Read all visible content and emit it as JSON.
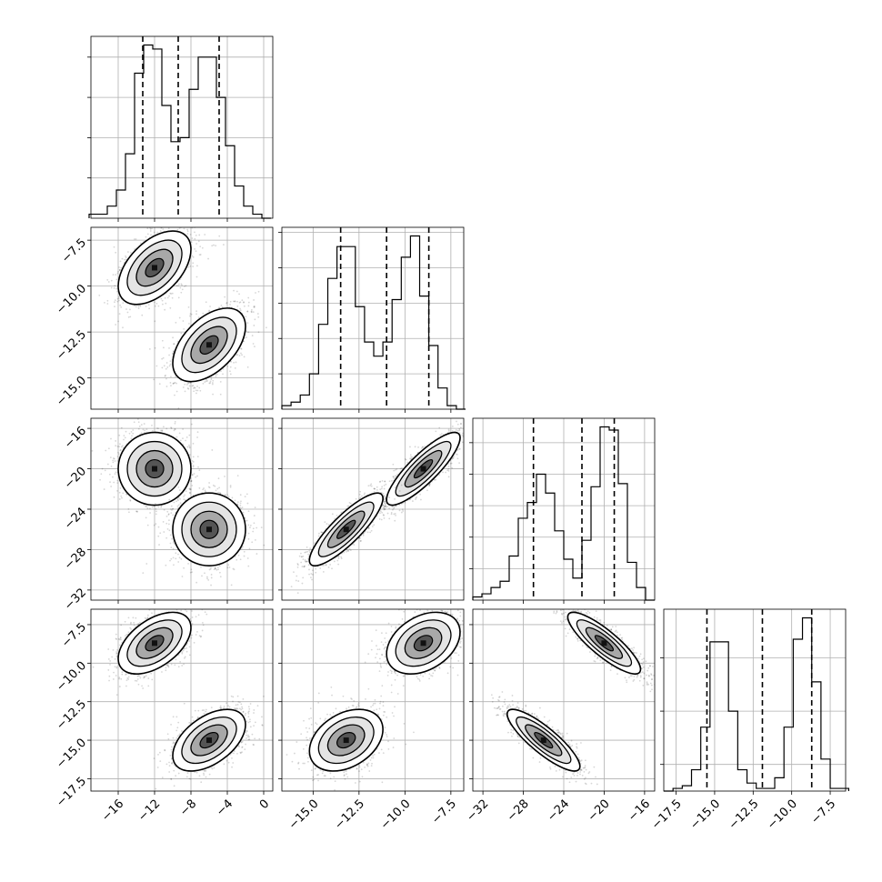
{
  "chart_data": {
    "type": "corner",
    "grid": true,
    "variables": [
      {
        "name": "",
        "range": [
          -19,
          1
        ],
        "ticks": [
          -16,
          -12,
          -8,
          -4,
          0
        ],
        "tick_labels": [
          "−16",
          "−12",
          "−8",
          "−4",
          "0"
        ],
        "quantiles": [
          -13.3,
          -9.4,
          -4.9
        ],
        "hist_x": [
          -18.7,
          -17.7,
          -16.7,
          -15.7,
          -14.7,
          -13.7,
          -12.7,
          -11.7,
          -10.7,
          -9.7,
          -8.7,
          -7.7,
          -6.7,
          -5.7,
          -4.7,
          -3.7,
          -2.7,
          -1.7,
          -0.7,
          0.3
        ],
        "hist_y": [
          1,
          1,
          3,
          7,
          16,
          36,
          43,
          42,
          28,
          19,
          20,
          32,
          40,
          40,
          30,
          18,
          8,
          3,
          1,
          0
        ]
      },
      {
        "name": "",
        "range": [
          -16.7,
          -6.8
        ],
        "ticks": [
          -15,
          -12.5,
          -10,
          -7.5
        ],
        "tick_labels": [
          "−15.0",
          "−12.5",
          "−10.0",
          "−7.5"
        ],
        "quantiles": [
          -13.5,
          -11.0,
          -8.7
        ],
        "hist_x": [
          -16.45,
          -15.95,
          -15.45,
          -14.95,
          -14.45,
          -13.95,
          -13.45,
          -12.95,
          -12.45,
          -11.95,
          -11.45,
          -10.95,
          -10.45,
          -9.95,
          -9.45,
          -8.95,
          -8.45,
          -7.95,
          -7.45,
          -6.95
        ],
        "hist_y": [
          1,
          2,
          4,
          10,
          24,
          37,
          46,
          46,
          29,
          19,
          15,
          19,
          31,
          43,
          49,
          32,
          18,
          6,
          1,
          0
        ]
      },
      {
        "name": "",
        "range": [
          -33,
          -15
        ],
        "ticks": [
          -32,
          -28,
          -24,
          -20,
          -16
        ],
        "tick_labels": [
          "−32",
          "−28",
          "−24",
          "−20",
          "−16"
        ],
        "quantiles": [
          -27.0,
          -22.2,
          -19.0
        ],
        "hist_x": [
          -32.55,
          -31.65,
          -30.75,
          -29.85,
          -28.95,
          -28.05,
          -27.15,
          -26.25,
          -25.35,
          -24.45,
          -23.55,
          -22.65,
          -21.75,
          -20.85,
          -19.95,
          -19.05,
          -18.15,
          -17.25,
          -16.35,
          -15.45
        ],
        "hist_y": [
          1,
          2,
          4,
          6,
          14,
          26,
          31,
          40,
          34,
          22,
          13,
          7,
          19,
          36,
          55,
          54,
          37,
          12,
          4,
          0
        ]
      },
      {
        "name": "",
        "range": [
          -18.3,
          -6.5
        ],
        "ticks": [
          -17.5,
          -15,
          -12.5,
          -10,
          -7.5
        ],
        "tick_labels": [
          "−17.5",
          "−15.0",
          "−12.5",
          "−10.0",
          "−7.5"
        ],
        "quantiles": [
          -15.5,
          -11.9,
          -8.7
        ],
        "hist_x": [
          -18.0,
          -17.4,
          -16.8,
          -16.2,
          -15.6,
          -15.0,
          -14.4,
          -13.8,
          -13.2,
          -12.6,
          -12.0,
          -11.4,
          -10.8,
          -10.2,
          -9.6,
          -9.0,
          -8.4,
          -7.8,
          -7.2,
          -6.6
        ],
        "hist_y": [
          0,
          1,
          2,
          8,
          24,
          56,
          56,
          30,
          8,
          3,
          1,
          1,
          5,
          24,
          57,
          65,
          41,
          12,
          1,
          1
        ]
      }
    ],
    "modes": [
      {
        "mean": [
          -12.0,
          -9.0,
          -20.0,
          -8.7
        ],
        "sd": [
          2.0,
          1.0,
          1.8,
          1.0
        ]
      },
      {
        "mean": [
          -6.0,
          -13.2,
          -26.0,
          -15.0
        ],
        "sd": [
          2.0,
          1.0,
          1.8,
          1.0
        ]
      }
    ],
    "pair_rho": [
      [
        0,
        0,
        0,
        0
      ],
      [
        0.5,
        0,
        0,
        0
      ],
      [
        0.0,
        0.85,
        0,
        0
      ],
      [
        0.5,
        0.35,
        -0.85,
        0
      ]
    ]
  }
}
